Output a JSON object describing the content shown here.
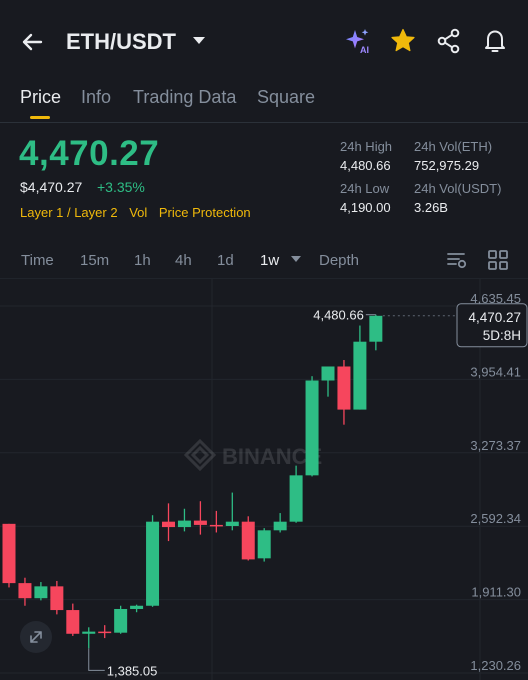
{
  "header": {
    "pair": "ETH/USDT",
    "icons": [
      "back-arrow-icon",
      "chevron-down-icon",
      "ai-sparkle-icon",
      "star-icon",
      "share-icon",
      "bell-icon"
    ],
    "ai_badge": "AI"
  },
  "tabs": [
    {
      "label": "Price",
      "active": true
    },
    {
      "label": "Info",
      "active": false
    },
    {
      "label": "Trading Data",
      "active": false
    },
    {
      "label": "Square",
      "active": false
    }
  ],
  "price": {
    "last": "4,470.27",
    "usd": "$4,470.27",
    "change": "+3.35%",
    "tags": [
      "Layer 1 / Layer 2",
      "Vol",
      "Price Protection"
    ]
  },
  "stats": {
    "high_label": "24h High",
    "high": "4,480.66",
    "vol_eth_label": "24h Vol(ETH)",
    "vol_eth": "752,975.29",
    "low_label": "24h Low",
    "low": "4,190.00",
    "vol_usdt_label": "24h Vol(USDT)",
    "vol_usdt": "3.26B"
  },
  "timeframes": [
    "Time",
    "15m",
    "1h",
    "4h",
    "1d",
    "1w",
    "Depth"
  ],
  "active_timeframe": "1w",
  "colors": {
    "up": "#2ebd85",
    "down": "#f6465d",
    "accent": "#f0b90b",
    "bg": "#181a20"
  },
  "chart_data": {
    "type": "candlestick",
    "y_ticks": [
      "4,635.45",
      "3,954.41",
      "3,273.37",
      "2,592.34",
      "1,911.30",
      "1,230.26"
    ],
    "watermark": "BINANCE",
    "high_marker": "4,480.66",
    "low_marker": "1,385.05",
    "current_price": "4,470.27",
    "countdown": "5D:8H",
    "candles": [
      {
        "o": 2540,
        "h": 2540,
        "c": 1990,
        "l": 1950
      },
      {
        "o": 1990,
        "h": 2040,
        "c": 1850,
        "l": 1780
      },
      {
        "o": 1850,
        "h": 2000,
        "c": 1960,
        "l": 1830
      },
      {
        "o": 1960,
        "h": 2010,
        "c": 1740,
        "l": 1700
      },
      {
        "o": 1740,
        "h": 1800,
        "c": 1520,
        "l": 1500
      },
      {
        "o": 1520,
        "h": 1580,
        "c": 1540,
        "l": 1385.05
      },
      {
        "o": 1540,
        "h": 1600,
        "c": 1530,
        "l": 1480
      },
      {
        "o": 1530,
        "h": 1780,
        "c": 1750,
        "l": 1520
      },
      {
        "o": 1750,
        "h": 1790,
        "c": 1780,
        "l": 1720
      },
      {
        "o": 1780,
        "h": 2620,
        "c": 2560,
        "l": 1770
      },
      {
        "o": 2560,
        "h": 2730,
        "c": 2510,
        "l": 2380
      },
      {
        "o": 2510,
        "h": 2680,
        "c": 2570,
        "l": 2470
      },
      {
        "o": 2570,
        "h": 2750,
        "c": 2530,
        "l": 2440
      },
      {
        "o": 2530,
        "h": 2660,
        "c": 2520,
        "l": 2460
      },
      {
        "o": 2520,
        "h": 2830,
        "c": 2560,
        "l": 2480
      },
      {
        "o": 2560,
        "h": 2610,
        "c": 2210,
        "l": 2200
      },
      {
        "o": 2220,
        "h": 2500,
        "c": 2480,
        "l": 2190
      },
      {
        "o": 2480,
        "h": 2640,
        "c": 2560,
        "l": 2460
      },
      {
        "o": 2560,
        "h": 3080,
        "c": 2990,
        "l": 2550
      },
      {
        "o": 2990,
        "h": 3910,
        "c": 3870,
        "l": 2980
      },
      {
        "o": 3870,
        "h": 4000,
        "c": 4000,
        "l": 3720
      },
      {
        "o": 4000,
        "h": 4060,
        "c": 3600,
        "l": 3460
      },
      {
        "o": 3600,
        "h": 4380,
        "c": 4230,
        "l": 3600
      },
      {
        "o": 4230,
        "h": 4480.66,
        "c": 4470.27,
        "l": 4150
      }
    ]
  }
}
